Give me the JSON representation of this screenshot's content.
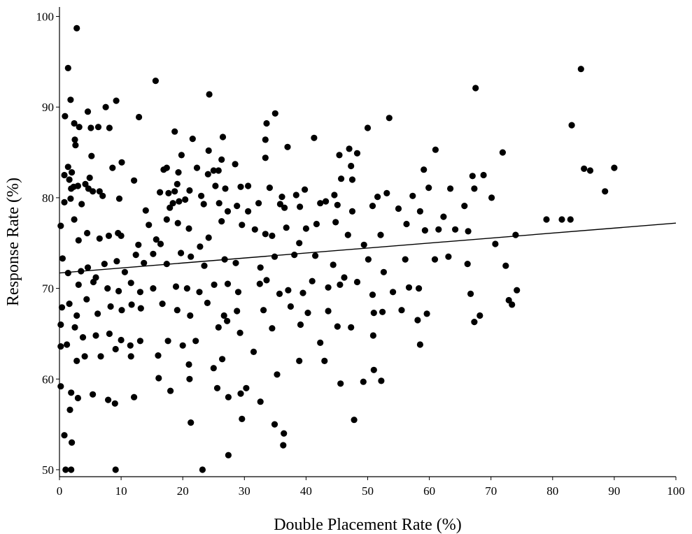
{
  "chart_data": {
    "type": "scatter",
    "title": "",
    "xlabel": "Double Placement Rate (%)",
    "ylabel": "Response Rate (%)",
    "xlim": [
      0,
      100
    ],
    "ylim": [
      49,
      100
    ],
    "x_ticks": [
      0,
      10,
      20,
      30,
      40,
      50,
      60,
      70,
      80,
      90,
      100
    ],
    "y_ticks": [
      50,
      60,
      70,
      80,
      90,
      100
    ],
    "x_tick_labels": [
      "0",
      "10",
      "20",
      "30",
      "40",
      "50",
      "60",
      "70",
      "80",
      "90",
      "100"
    ],
    "y_tick_labels": [
      "50",
      "60",
      "70",
      "80",
      "90",
      "100"
    ],
    "grid": false,
    "legend": "none",
    "marker_color": "#000000",
    "trendline": {
      "x": [
        0,
        100
      ],
      "y": [
        71.7,
        77.2
      ]
    },
    "points": [
      [
        2.8,
        98.7
      ],
      [
        1.4,
        94.3
      ],
      [
        84.6,
        94.2
      ],
      [
        67.5,
        92.1
      ],
      [
        24.3,
        91.4
      ],
      [
        15.6,
        92.9
      ],
      [
        1.8,
        90.8
      ],
      [
        9.2,
        90.7
      ],
      [
        4.6,
        89.5
      ],
      [
        0.9,
        89.0
      ],
      [
        7.5,
        90.0
      ],
      [
        12.9,
        88.9
      ],
      [
        35.0,
        89.3
      ],
      [
        33.6,
        88.2
      ],
      [
        53.5,
        88.8
      ],
      [
        83.1,
        88.0
      ],
      [
        2.4,
        88.2
      ],
      [
        3.2,
        87.8
      ],
      [
        5.1,
        87.7
      ],
      [
        6.3,
        87.8
      ],
      [
        8.1,
        87.7
      ],
      [
        18.7,
        87.3
      ],
      [
        33.4,
        86.4
      ],
      [
        41.3,
        86.6
      ],
      [
        50.0,
        87.7
      ],
      [
        2.5,
        86.4
      ],
      [
        2.6,
        85.8
      ],
      [
        21.6,
        86.5
      ],
      [
        26.5,
        86.7
      ],
      [
        37.0,
        85.6
      ],
      [
        61.0,
        85.3
      ],
      [
        71.9,
        85.0
      ],
      [
        5.2,
        84.6
      ],
      [
        24.2,
        85.2
      ],
      [
        47.0,
        85.4
      ],
      [
        45.4,
        84.7
      ],
      [
        48.3,
        84.9
      ],
      [
        33.4,
        84.4
      ],
      [
        19.8,
        84.7
      ],
      [
        26.3,
        84.2
      ],
      [
        10.1,
        83.9
      ],
      [
        1.4,
        83.4
      ],
      [
        4.9,
        82.2
      ],
      [
        8.6,
        83.3
      ],
      [
        16.9,
        83.1
      ],
      [
        17.4,
        83.3
      ],
      [
        22.3,
        83.3
      ],
      [
        25.0,
        83.0
      ],
      [
        25.8,
        83.0
      ],
      [
        28.5,
        83.7
      ],
      [
        0.8,
        82.5
      ],
      [
        2.0,
        82.8
      ],
      [
        19.3,
        82.8
      ],
      [
        24.1,
        82.6
      ],
      [
        45.7,
        82.1
      ],
      [
        47.5,
        82.0
      ],
      [
        47.3,
        83.5
      ],
      [
        59.1,
        83.1
      ],
      [
        67.0,
        82.4
      ],
      [
        68.8,
        82.5
      ],
      [
        85.1,
        83.2
      ],
      [
        86.1,
        83.0
      ],
      [
        90.0,
        83.3
      ],
      [
        1.6,
        82.0
      ],
      [
        1.9,
        81.0
      ],
      [
        2.3,
        81.2
      ],
      [
        3.0,
        81.3
      ],
      [
        4.2,
        81.5
      ],
      [
        4.7,
        81.0
      ],
      [
        5.4,
        80.7
      ],
      [
        6.5,
        80.7
      ],
      [
        7.0,
        80.2
      ],
      [
        12.1,
        81.9
      ],
      [
        16.3,
        80.6
      ],
      [
        17.7,
        80.5
      ],
      [
        18.7,
        80.7
      ],
      [
        19.1,
        81.5
      ],
      [
        21.1,
        80.8
      ],
      [
        23.0,
        80.2
      ],
      [
        25.3,
        81.3
      ],
      [
        26.9,
        81.0
      ],
      [
        29.4,
        81.2
      ],
      [
        30.6,
        81.3
      ],
      [
        34.1,
        81.1
      ],
      [
        36.1,
        80.1
      ],
      [
        38.4,
        80.3
      ],
      [
        39.8,
        80.9
      ],
      [
        43.2,
        79.6
      ],
      [
        44.6,
        80.3
      ],
      [
        51.6,
        80.1
      ],
      [
        53.1,
        80.5
      ],
      [
        57.3,
        80.2
      ],
      [
        59.9,
        81.1
      ],
      [
        63.4,
        81.0
      ],
      [
        67.3,
        81.0
      ],
      [
        88.5,
        80.7
      ],
      [
        0.8,
        79.5
      ],
      [
        1.8,
        79.9
      ],
      [
        3.6,
        79.3
      ],
      [
        9.7,
        79.9
      ],
      [
        14.0,
        78.6
      ],
      [
        17.9,
        78.9
      ],
      [
        18.4,
        79.4
      ],
      [
        19.4,
        79.6
      ],
      [
        20.4,
        79.8
      ],
      [
        23.4,
        79.3
      ],
      [
        25.9,
        79.4
      ],
      [
        27.3,
        78.5
      ],
      [
        28.8,
        79.1
      ],
      [
        30.6,
        78.5
      ],
      [
        32.3,
        79.4
      ],
      [
        35.8,
        79.3
      ],
      [
        36.5,
        78.9
      ],
      [
        39.0,
        79.0
      ],
      [
        42.3,
        79.4
      ],
      [
        45.1,
        79.2
      ],
      [
        47.5,
        78.5
      ],
      [
        50.8,
        79.1
      ],
      [
        55.0,
        78.8
      ],
      [
        58.5,
        78.5
      ],
      [
        62.3,
        77.9
      ],
      [
        65.7,
        79.1
      ],
      [
        70.1,
        80.0
      ],
      [
        79.0,
        77.6
      ],
      [
        81.5,
        77.6
      ],
      [
        82.9,
        77.6
      ],
      [
        0.2,
        76.9
      ],
      [
        2.4,
        77.6
      ],
      [
        3.1,
        75.3
      ],
      [
        4.5,
        76.1
      ],
      [
        6.5,
        75.5
      ],
      [
        8.0,
        75.8
      ],
      [
        9.5,
        76.1
      ],
      [
        10.0,
        75.8
      ],
      [
        12.8,
        74.8
      ],
      [
        14.5,
        77.0
      ],
      [
        15.7,
        75.4
      ],
      [
        16.4,
        74.9
      ],
      [
        17.4,
        77.6
      ],
      [
        19.2,
        77.2
      ],
      [
        21.0,
        76.6
      ],
      [
        22.8,
        74.6
      ],
      [
        24.2,
        75.6
      ],
      [
        26.3,
        77.4
      ],
      [
        29.6,
        77.0
      ],
      [
        31.7,
        76.5
      ],
      [
        33.4,
        76.0
      ],
      [
        34.5,
        75.8
      ],
      [
        36.8,
        76.7
      ],
      [
        38.9,
        75.0
      ],
      [
        40.0,
        76.6
      ],
      [
        41.7,
        77.1
      ],
      [
        44.8,
        77.3
      ],
      [
        46.8,
        75.9
      ],
      [
        49.4,
        74.8
      ],
      [
        52.1,
        75.9
      ],
      [
        56.3,
        77.1
      ],
      [
        59.3,
        76.4
      ],
      [
        61.5,
        76.5
      ],
      [
        64.2,
        76.5
      ],
      [
        66.3,
        76.3
      ],
      [
        70.7,
        74.9
      ],
      [
        74.0,
        75.9
      ],
      [
        1.4,
        71.7
      ],
      [
        0.5,
        73.3
      ],
      [
        3.5,
        71.9
      ],
      [
        4.6,
        72.3
      ],
      [
        5.9,
        71.2
      ],
      [
        7.3,
        72.7
      ],
      [
        9.3,
        73.0
      ],
      [
        10.6,
        71.8
      ],
      [
        12.4,
        73.7
      ],
      [
        13.7,
        72.8
      ],
      [
        15.2,
        73.8
      ],
      [
        17.4,
        72.7
      ],
      [
        19.7,
        73.9
      ],
      [
        21.3,
        73.5
      ],
      [
        23.5,
        72.5
      ],
      [
        26.8,
        73.2
      ],
      [
        28.6,
        72.8
      ],
      [
        32.6,
        72.3
      ],
      [
        34.9,
        73.5
      ],
      [
        38.1,
        73.7
      ],
      [
        41.5,
        73.6
      ],
      [
        44.4,
        72.6
      ],
      [
        46.2,
        71.2
      ],
      [
        50.1,
        73.2
      ],
      [
        52.6,
        71.8
      ],
      [
        56.1,
        73.2
      ],
      [
        60.9,
        73.2
      ],
      [
        63.1,
        73.5
      ],
      [
        66.2,
        72.7
      ],
      [
        72.4,
        72.5
      ],
      [
        3.1,
        70.4
      ],
      [
        5.5,
        70.7
      ],
      [
        7.8,
        70.0
      ],
      [
        9.6,
        69.7
      ],
      [
        11.6,
        70.6
      ],
      [
        13.1,
        69.6
      ],
      [
        15.2,
        70.0
      ],
      [
        18.9,
        70.2
      ],
      [
        20.7,
        70.0
      ],
      [
        22.7,
        69.6
      ],
      [
        25.1,
        70.4
      ],
      [
        27.3,
        70.5
      ],
      [
        29.0,
        69.6
      ],
      [
        32.5,
        70.5
      ],
      [
        33.6,
        70.9
      ],
      [
        35.7,
        69.4
      ],
      [
        37.1,
        69.8
      ],
      [
        39.5,
        69.5
      ],
      [
        41.0,
        70.8
      ],
      [
        43.6,
        70.1
      ],
      [
        45.5,
        70.4
      ],
      [
        48.3,
        70.7
      ],
      [
        50.8,
        69.3
      ],
      [
        54.1,
        69.6
      ],
      [
        56.7,
        70.1
      ],
      [
        58.3,
        70.0
      ],
      [
        66.7,
        69.4
      ],
      [
        72.9,
        68.7
      ],
      [
        74.2,
        69.8
      ],
      [
        0.4,
        67.9
      ],
      [
        1.6,
        68.3
      ],
      [
        2.8,
        67.0
      ],
      [
        4.4,
        68.8
      ],
      [
        6.2,
        67.2
      ],
      [
        8.3,
        68.0
      ],
      [
        10.1,
        67.6
      ],
      [
        11.7,
        68.2
      ],
      [
        13.2,
        67.8
      ],
      [
        16.7,
        68.3
      ],
      [
        19.1,
        67.6
      ],
      [
        21.2,
        67.0
      ],
      [
        24.0,
        68.4
      ],
      [
        26.7,
        67.0
      ],
      [
        28.8,
        67.5
      ],
      [
        33.1,
        67.6
      ],
      [
        37.5,
        68.0
      ],
      [
        40.3,
        67.3
      ],
      [
        43.6,
        67.5
      ],
      [
        51.0,
        67.3
      ],
      [
        52.4,
        67.4
      ],
      [
        55.5,
        67.6
      ],
      [
        59.6,
        67.2
      ],
      [
        68.2,
        67.0
      ],
      [
        73.4,
        68.2
      ],
      [
        0.2,
        66.0
      ],
      [
        2.5,
        65.7
      ],
      [
        3.8,
        64.6
      ],
      [
        5.9,
        64.8
      ],
      [
        8.1,
        65.0
      ],
      [
        10.0,
        64.3
      ],
      [
        11.5,
        63.7
      ],
      [
        13.1,
        64.2
      ],
      [
        17.6,
        64.2
      ],
      [
        20.0,
        63.7
      ],
      [
        22.1,
        64.2
      ],
      [
        25.8,
        65.7
      ],
      [
        27.2,
        66.4
      ],
      [
        29.3,
        65.1
      ],
      [
        34.5,
        65.6
      ],
      [
        39.1,
        66.0
      ],
      [
        42.3,
        64.0
      ],
      [
        45.1,
        65.8
      ],
      [
        47.3,
        65.7
      ],
      [
        50.9,
        64.8
      ],
      [
        58.1,
        66.5
      ],
      [
        67.3,
        66.3
      ],
      [
        0.2,
        63.6
      ],
      [
        1.2,
        63.8
      ],
      [
        2.8,
        62.0
      ],
      [
        4.1,
        62.5
      ],
      [
        6.7,
        62.5
      ],
      [
        9.1,
        63.3
      ],
      [
        11.6,
        62.5
      ],
      [
        16.0,
        62.6
      ],
      [
        21.0,
        61.6
      ],
      [
        25.0,
        61.2
      ],
      [
        26.4,
        62.2
      ],
      [
        31.5,
        63.0
      ],
      [
        35.3,
        60.5
      ],
      [
        38.9,
        62.0
      ],
      [
        43.0,
        62.0
      ],
      [
        51.0,
        61.0
      ],
      [
        58.5,
        63.8
      ],
      [
        0.2,
        59.2
      ],
      [
        1.9,
        58.5
      ],
      [
        3.0,
        57.9
      ],
      [
        5.4,
        58.3
      ],
      [
        7.9,
        57.7
      ],
      [
        9.0,
        57.3
      ],
      [
        12.1,
        58.0
      ],
      [
        16.1,
        60.1
      ],
      [
        18.0,
        58.7
      ],
      [
        21.1,
        60.0
      ],
      [
        25.6,
        59.0
      ],
      [
        27.4,
        58.0
      ],
      [
        29.4,
        58.4
      ],
      [
        30.3,
        59.0
      ],
      [
        32.6,
        57.5
      ],
      [
        36.4,
        54.0
      ],
      [
        45.6,
        59.5
      ],
      [
        47.8,
        55.5
      ],
      [
        49.3,
        59.7
      ],
      [
        52.2,
        59.8
      ],
      [
        34.9,
        55.0
      ],
      [
        29.6,
        55.6
      ],
      [
        21.3,
        55.2
      ],
      [
        1.7,
        56.6
      ],
      [
        0.8,
        53.8
      ],
      [
        2.0,
        53.0
      ],
      [
        36.3,
        52.7
      ],
      [
        27.4,
        51.6
      ],
      [
        1.0,
        50.0
      ],
      [
        1.9,
        50.0
      ],
      [
        9.1,
        50.0
      ],
      [
        23.2,
        50.0
      ]
    ]
  }
}
